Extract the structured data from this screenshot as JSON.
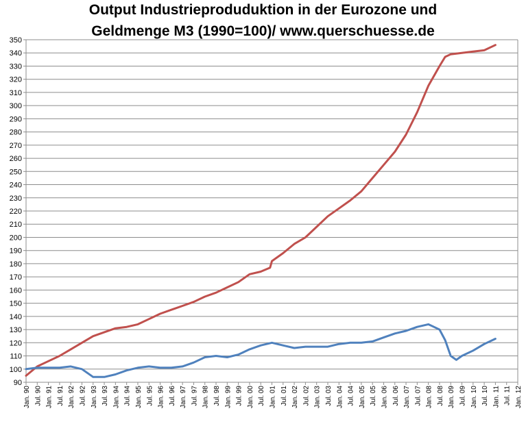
{
  "chart_data": {
    "type": "line",
    "title_line1": "Output Industrieproduduktion  in der Eurozone und",
    "title_line2": "Geldmenge M3 (1990=100)/  www.querschuesse.de",
    "ylim": [
      90,
      350
    ],
    "ytick_step": 10,
    "grid": true,
    "x_range_months": [
      0,
      264
    ],
    "x_tick_labels": [
      "Jan. 90",
      "Jul. 90",
      "Jan. 91",
      "Jul. 91",
      "Jan. 92",
      "Jul. 92",
      "Jan. 93",
      "Jul. 93",
      "Jan. 94",
      "Jul. 94",
      "Jan. 95",
      "Jul. 95",
      "Jan. 96",
      "Jul. 96",
      "Jan. 97",
      "Jul. 97",
      "Jan. 98",
      "Jul. 98",
      "Jan. 99",
      "Jul. 99",
      "Jan. 00",
      "Jul. 00",
      "Jan. 01",
      "Jul. 01",
      "Jan. 02",
      "Jul. 02",
      "Jan. 03",
      "Jul. 03",
      "Jan. 04",
      "Jul. 04",
      "Jan. 05",
      "Jul. 05",
      "Jan. 06",
      "Jul. 06",
      "Jan. 07",
      "Jul. 07",
      "Jan. 08",
      "Jul. 08",
      "Jan. 09",
      "Jul. 09",
      "Jan. 10",
      "Jul. 10",
      "Jan. 11",
      "Jul. 11",
      "Jan. 12"
    ],
    "series": [
      {
        "color": "#c0504d",
        "points": [
          [
            "Jan. 90",
            95
          ],
          [
            "Jul. 90",
            102
          ],
          [
            "Jan. 91",
            106
          ],
          [
            "Jul. 91",
            110
          ],
          [
            "Jan. 92",
            115
          ],
          [
            "Jul. 92",
            120
          ],
          [
            "Jan. 93",
            125
          ],
          [
            "Jul. 93",
            128
          ],
          [
            "Jan. 94",
            131
          ],
          [
            "Jul. 94",
            132
          ],
          [
            "Jan. 95",
            134
          ],
          [
            "Jul. 95",
            138
          ],
          [
            "Jan. 96",
            142
          ],
          [
            "Jul. 96",
            145
          ],
          [
            "Jan. 97",
            148
          ],
          [
            "Jul. 97",
            151
          ],
          [
            "Jan. 98",
            155
          ],
          [
            "Jul. 98",
            158
          ],
          [
            "Jan. 99",
            162
          ],
          [
            "Jul. 99",
            166
          ],
          [
            "Jan. 00",
            172
          ],
          [
            "Jul. 00",
            174
          ],
          [
            "Dec. 00",
            177
          ],
          [
            "Jan. 01",
            182
          ],
          [
            "Jul. 01",
            188
          ],
          [
            "Jan. 02",
            195
          ],
          [
            "Jul. 02",
            200
          ],
          [
            "Jan. 03",
            208
          ],
          [
            "Jul. 03",
            216
          ],
          [
            "Jan. 04",
            222
          ],
          [
            "Jul. 04",
            228
          ],
          [
            "Jan. 05",
            235
          ],
          [
            "Jul. 05",
            245
          ],
          [
            "Jan. 06",
            255
          ],
          [
            "Jul. 06",
            265
          ],
          [
            "Jan. 07",
            278
          ],
          [
            "Jul. 07",
            295
          ],
          [
            "Jan. 08",
            315
          ],
          [
            "Jul. 08",
            330
          ],
          [
            "Oct. 08",
            337
          ],
          [
            "Jan. 09",
            339
          ],
          [
            "Jul. 09",
            340
          ],
          [
            "Jan. 10",
            341
          ],
          [
            "Jul. 10",
            342
          ],
          [
            "Jan. 11",
            346
          ]
        ]
      },
      {
        "color": "#4f81bd",
        "points": [
          [
            "Jan. 90",
            100
          ],
          [
            "Jul. 90",
            101
          ],
          [
            "Jan. 91",
            101
          ],
          [
            "Jul. 91",
            101
          ],
          [
            "Jan. 92",
            102
          ],
          [
            "Jul. 92",
            100
          ],
          [
            "Jan. 93",
            94
          ],
          [
            "Jul. 93",
            94
          ],
          [
            "Jan. 94",
            96
          ],
          [
            "Jul. 94",
            99
          ],
          [
            "Jan. 95",
            101
          ],
          [
            "Jul. 95",
            102
          ],
          [
            "Jan. 96",
            101
          ],
          [
            "Jul. 96",
            101
          ],
          [
            "Jan. 97",
            102
          ],
          [
            "Jul. 97",
            105
          ],
          [
            "Jan. 98",
            109
          ],
          [
            "Jul. 98",
            110
          ],
          [
            "Jan. 99",
            109
          ],
          [
            "Jul. 99",
            111
          ],
          [
            "Jan. 00",
            115
          ],
          [
            "Jul. 00",
            118
          ],
          [
            "Jan. 01",
            120
          ],
          [
            "Jul. 01",
            118
          ],
          [
            "Jan. 02",
            116
          ],
          [
            "Jul. 02",
            117
          ],
          [
            "Jan. 03",
            117
          ],
          [
            "Jul. 03",
            117
          ],
          [
            "Jan. 04",
            119
          ],
          [
            "Jul. 04",
            120
          ],
          [
            "Jan. 05",
            120
          ],
          [
            "Jul. 05",
            121
          ],
          [
            "Jan. 06",
            124
          ],
          [
            "Jul. 06",
            127
          ],
          [
            "Jan. 07",
            129
          ],
          [
            "Jul. 07",
            132
          ],
          [
            "Jan. 08",
            134
          ],
          [
            "Apr. 08",
            132
          ],
          [
            "Jul. 08",
            130
          ],
          [
            "Oct. 08",
            122
          ],
          [
            "Jan. 09",
            110
          ],
          [
            "Apr. 09",
            107
          ],
          [
            "Jul. 09",
            110
          ],
          [
            "Jan. 10",
            114
          ],
          [
            "Jul. 10",
            119
          ],
          [
            "Jan. 11",
            123
          ]
        ]
      }
    ]
  }
}
